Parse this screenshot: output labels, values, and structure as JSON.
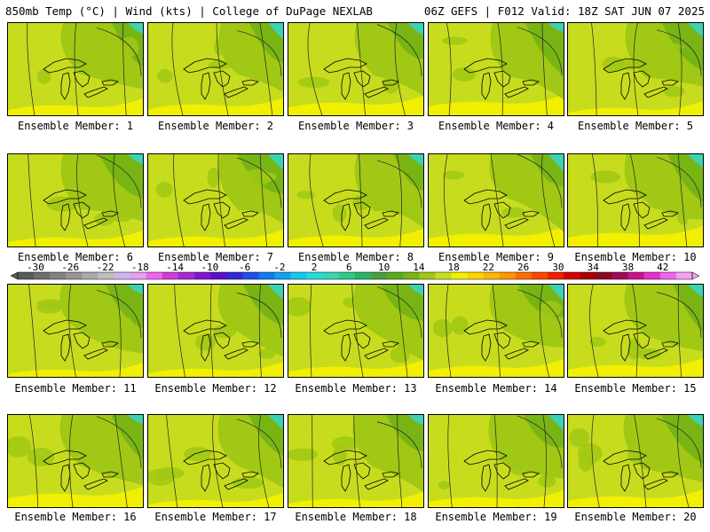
{
  "header": {
    "left_title": "850mb Temp (°C) | Wind (kts) | College of DuPage NEXLAB",
    "right_title": "06Z GEFS | F012 Valid: 18Z SAT JUN 07 2025"
  },
  "member_label_prefix": "Ensemble Member: ",
  "members": [
    {
      "number": "1"
    },
    {
      "number": "2"
    },
    {
      "number": "3"
    },
    {
      "number": "4"
    },
    {
      "number": "5"
    },
    {
      "number": "6"
    },
    {
      "number": "7"
    },
    {
      "number": "8"
    },
    {
      "number": "9"
    },
    {
      "number": "10"
    },
    {
      "number": "11"
    },
    {
      "number": "12"
    },
    {
      "number": "13"
    },
    {
      "number": "14"
    },
    {
      "number": "15"
    },
    {
      "number": "16"
    },
    {
      "number": "17"
    },
    {
      "number": "18"
    },
    {
      "number": "19"
    },
    {
      "number": "20"
    }
  ],
  "colorbar": {
    "tick_labels": [
      "-30",
      "-26",
      "-22",
      "-18",
      "-14",
      "-10",
      "-6",
      "-2",
      "2",
      "6",
      "10",
      "14",
      "18",
      "22",
      "26",
      "30",
      "34",
      "38",
      "42"
    ],
    "colors": [
      "#5a5a5a",
      "#6e6e6e",
      "#828282",
      "#969696",
      "#aaaaaa",
      "#bebebe",
      "#d2b4f0",
      "#e6a0f0",
      "#f064f0",
      "#d23cd2",
      "#aa28d2",
      "#8214d2",
      "#5a0fc8",
      "#3228d2",
      "#1e50e6",
      "#1478f0",
      "#14a0f0",
      "#14c8f0",
      "#28dcdc",
      "#3cd2b4",
      "#32c88c",
      "#28b464",
      "#46a03c",
      "#5aaa1e",
      "#78b414",
      "#a0c814",
      "#c8dc1e",
      "#f0f000",
      "#ffd200",
      "#ffb400",
      "#ff9600",
      "#ff6e00",
      "#ff4600",
      "#f01e00",
      "#d20000",
      "#aa0000",
      "#8c0a28",
      "#a00a5a",
      "#c8148c",
      "#e632c8",
      "#f064f0",
      "#f5a0f5"
    ]
  }
}
